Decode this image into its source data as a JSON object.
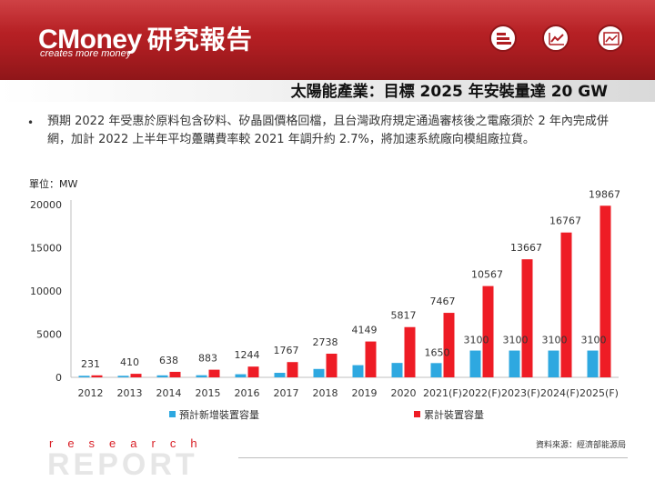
{
  "header": {
    "brand": "CMoney",
    "brand_suffix": "研究報告",
    "tagline": "creates more money",
    "nav_icons": [
      "stack-icon",
      "trend-chart-icon",
      "picture-chart-icon"
    ]
  },
  "slide": {
    "title": "太陽能產業：目標 2025 年安裝量達 20 GW",
    "bullet": "預期 2022 年受惠於原料包含矽料、矽晶圓價格回檔，且台灣政府規定通過審核後之電廠須於 2 年內完成併網，加計 2022 上半年平均躉購費率較 2021 年調升約 2.7%，將加速系統廠向模組廠拉貨。",
    "unit": "單位：MW"
  },
  "chart_data": {
    "type": "bar",
    "categories": [
      "2012",
      "2013",
      "2014",
      "2015",
      "2016",
      "2017",
      "2018",
      "2019",
      "2020",
      "2021(F)",
      "2022(F)",
      "2023(F)",
      "2024(F)",
      "2025(F)"
    ],
    "series": [
      {
        "name": "預計新增裝置容量",
        "color": "#2ea8e0",
        "values": [
          180,
          180,
          230,
          245,
          361,
          523,
          971,
          1411,
          1668,
          1650,
          3100,
          3100,
          3100,
          3100
        ],
        "labels": [
          "",
          "",
          "",
          "",
          "",
          "",
          "",
          "",
          "",
          "1650",
          "3100",
          "3100",
          "3100",
          "3100"
        ]
      },
      {
        "name": "累計裝置容量",
        "color": "#ee1c25",
        "values": [
          231,
          410,
          638,
          883,
          1244,
          1767,
          2738,
          4149,
          5817,
          7467,
          10567,
          13667,
          16767,
          19867
        ],
        "labels": [
          "231",
          "410",
          "638",
          "883",
          "1244",
          "1767",
          "2738",
          "4149",
          "5817",
          "7467",
          "10567",
          "13667",
          "16767",
          "19867"
        ]
      }
    ],
    "ylim": [
      0,
      20000
    ],
    "yticks": [
      0,
      5000,
      10000,
      15000,
      20000
    ],
    "legend": "bottom",
    "grid": false
  },
  "footer": {
    "research": "research",
    "report": "REPORT",
    "source": "資料來源：經濟部能源局"
  }
}
